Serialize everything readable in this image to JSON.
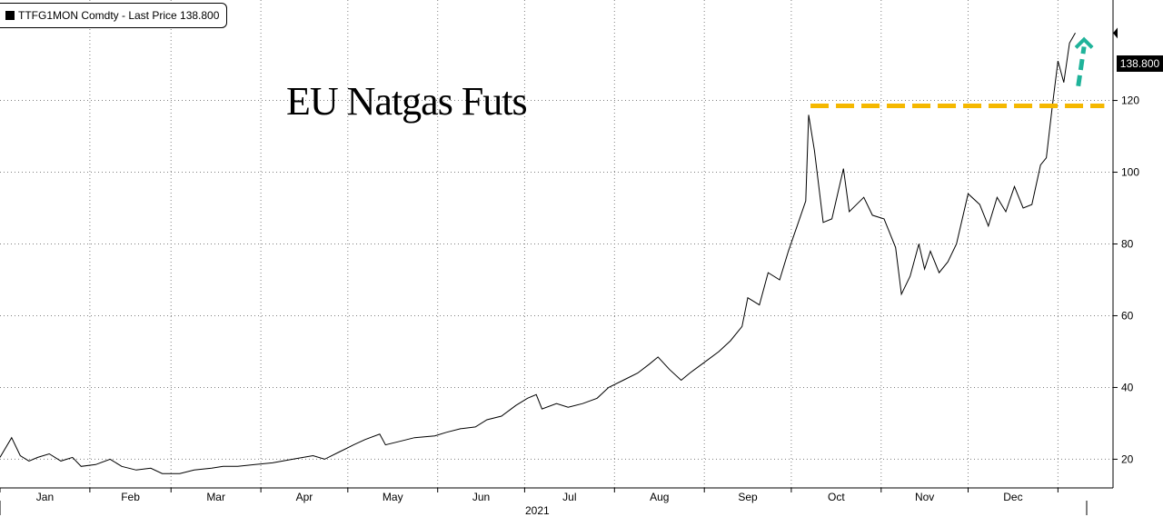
{
  "legend": {
    "label": "TTFG1MON Comdty - Last Price 138.800"
  },
  "annotation_title": "EU Natgas Futs",
  "last_price_label": "138.800",
  "year_label": "2021",
  "colors": {
    "line": "#000000",
    "threshold": "#f5b800",
    "arrow": "#1fb39a",
    "grid": "#7f7f7f"
  },
  "chart_data": {
    "type": "line",
    "title": "EU Natgas Futs",
    "series": [
      {
        "name": "TTFG1MON Comdty - Last Price",
        "points": [
          [
            "2021-01-01",
            20.5
          ],
          [
            "2021-01-05",
            26
          ],
          [
            "2021-01-08",
            21
          ],
          [
            "2021-01-11",
            19.5
          ],
          [
            "2021-01-14",
            20.5
          ],
          [
            "2021-01-18",
            21.5
          ],
          [
            "2021-01-22",
            19.5
          ],
          [
            "2021-01-26",
            20.5
          ],
          [
            "2021-01-29",
            18
          ],
          [
            "2021-02-03",
            18.5
          ],
          [
            "2021-02-08",
            20
          ],
          [
            "2021-02-12",
            18
          ],
          [
            "2021-02-17",
            17
          ],
          [
            "2021-02-22",
            17.5
          ],
          [
            "2021-02-26",
            16
          ],
          [
            "2021-03-04",
            16
          ],
          [
            "2021-03-09",
            17
          ],
          [
            "2021-03-15",
            17.5
          ],
          [
            "2021-03-19",
            18
          ],
          [
            "2021-03-24",
            18
          ],
          [
            "2021-03-30",
            18.5
          ],
          [
            "2021-04-05",
            19
          ],
          [
            "2021-04-12",
            20
          ],
          [
            "2021-04-19",
            21
          ],
          [
            "2021-04-23",
            20
          ],
          [
            "2021-04-28",
            22
          ],
          [
            "2021-05-03",
            24
          ],
          [
            "2021-05-07",
            25.5
          ],
          [
            "2021-05-12",
            27
          ],
          [
            "2021-05-14",
            24
          ],
          [
            "2021-05-19",
            25
          ],
          [
            "2021-05-24",
            26
          ],
          [
            "2021-05-31",
            26.5
          ],
          [
            "2021-06-04",
            27.5
          ],
          [
            "2021-06-09",
            28.5
          ],
          [
            "2021-06-14",
            29
          ],
          [
            "2021-06-18",
            31
          ],
          [
            "2021-06-23",
            32
          ],
          [
            "2021-06-28",
            35
          ],
          [
            "2021-07-02",
            37
          ],
          [
            "2021-07-05",
            38
          ],
          [
            "2021-07-07",
            34
          ],
          [
            "2021-07-12",
            35.5
          ],
          [
            "2021-07-16",
            34.5
          ],
          [
            "2021-07-21",
            35.5
          ],
          [
            "2021-07-26",
            37
          ],
          [
            "2021-07-30",
            40
          ],
          [
            "2021-08-04",
            42
          ],
          [
            "2021-08-09",
            44
          ],
          [
            "2021-08-13",
            46.5
          ],
          [
            "2021-08-16",
            48.5
          ],
          [
            "2021-08-20",
            45
          ],
          [
            "2021-08-24",
            42
          ],
          [
            "2021-08-27",
            44
          ],
          [
            "2021-09-01",
            47
          ],
          [
            "2021-09-06",
            50
          ],
          [
            "2021-09-10",
            53
          ],
          [
            "2021-09-14",
            57
          ],
          [
            "2021-09-16",
            65
          ],
          [
            "2021-09-20",
            63
          ],
          [
            "2021-09-23",
            72
          ],
          [
            "2021-09-27",
            70
          ],
          [
            "2021-09-30",
            78
          ],
          [
            "2021-10-03",
            85
          ],
          [
            "2021-10-06",
            92
          ],
          [
            "2021-10-07",
            116
          ],
          [
            "2021-10-09",
            106
          ],
          [
            "2021-10-12",
            86
          ],
          [
            "2021-10-15",
            87
          ],
          [
            "2021-10-19",
            101
          ],
          [
            "2021-10-21",
            89
          ],
          [
            "2021-10-26",
            93
          ],
          [
            "2021-10-29",
            88
          ],
          [
            "2021-11-02",
            87
          ],
          [
            "2021-11-06",
            79
          ],
          [
            "2021-11-08",
            66
          ],
          [
            "2021-11-11",
            71
          ],
          [
            "2021-11-14",
            80
          ],
          [
            "2021-11-16",
            73
          ],
          [
            "2021-11-18",
            78
          ],
          [
            "2021-11-21",
            72
          ],
          [
            "2021-11-24",
            75
          ],
          [
            "2021-11-27",
            80
          ],
          [
            "2021-12-01",
            94
          ],
          [
            "2021-12-05",
            91
          ],
          [
            "2021-12-08",
            85
          ],
          [
            "2021-12-11",
            93
          ],
          [
            "2021-12-14",
            89
          ],
          [
            "2021-12-17",
            96
          ],
          [
            "2021-12-20",
            90
          ],
          [
            "2021-12-23",
            91
          ],
          [
            "2021-12-26",
            102
          ],
          [
            "2021-12-28",
            104
          ],
          [
            "2021-12-30",
            118
          ],
          [
            "2022-01-01",
            131
          ],
          [
            "2022-01-03",
            125
          ],
          [
            "2022-01-05",
            136
          ],
          [
            "2022-01-07",
            138.8
          ]
        ]
      }
    ],
    "x_tick_labels": [
      "Jan",
      "Feb",
      "Mar",
      "Apr",
      "May",
      "Jun",
      "Jul",
      "Aug",
      "Sep",
      "Oct",
      "Nov",
      "Dec"
    ],
    "x_range": [
      "2021-01-01",
      "2022-01-20"
    ],
    "y_ticks": [
      20,
      40,
      60,
      80,
      100,
      120
    ],
    "ylim": [
      12,
      148
    ],
    "grid": true,
    "y_axis_position": "right",
    "annotations": [
      {
        "kind": "dashed-horizontal-line",
        "y": 118.5,
        "from": "2021-10-07",
        "to": "2022-01-17"
      },
      {
        "kind": "dashed-arrow",
        "from": [
          "2022-01-08",
          124
        ],
        "to": [
          "2022-01-10",
          137
        ]
      }
    ]
  }
}
